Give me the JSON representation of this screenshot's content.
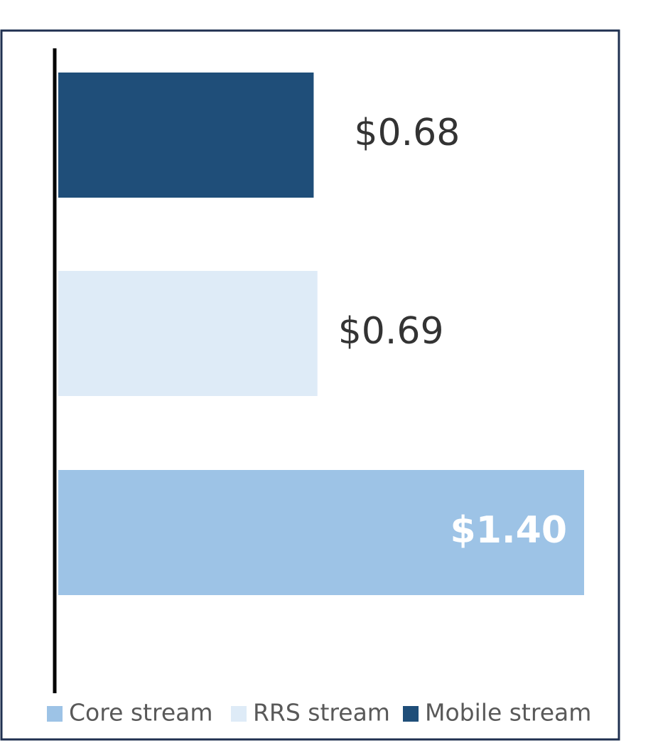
{
  "chart_data": {
    "type": "bar",
    "orientation": "horizontal",
    "series": [
      {
        "name": "Core stream",
        "color": "#9dc3e6",
        "values": [
          1.4
        ],
        "value_labels": [
          "$1.40"
        ]
      },
      {
        "name": "RRS stream",
        "color": "#deebf7",
        "values": [
          0.69
        ],
        "value_labels": [
          "$0.69"
        ]
      },
      {
        "name": "Mobile stream",
        "color": "#1f4e79",
        "values": [
          0.68
        ],
        "value_labels": [
          "$0.68"
        ]
      }
    ],
    "legend": "bottom"
  }
}
